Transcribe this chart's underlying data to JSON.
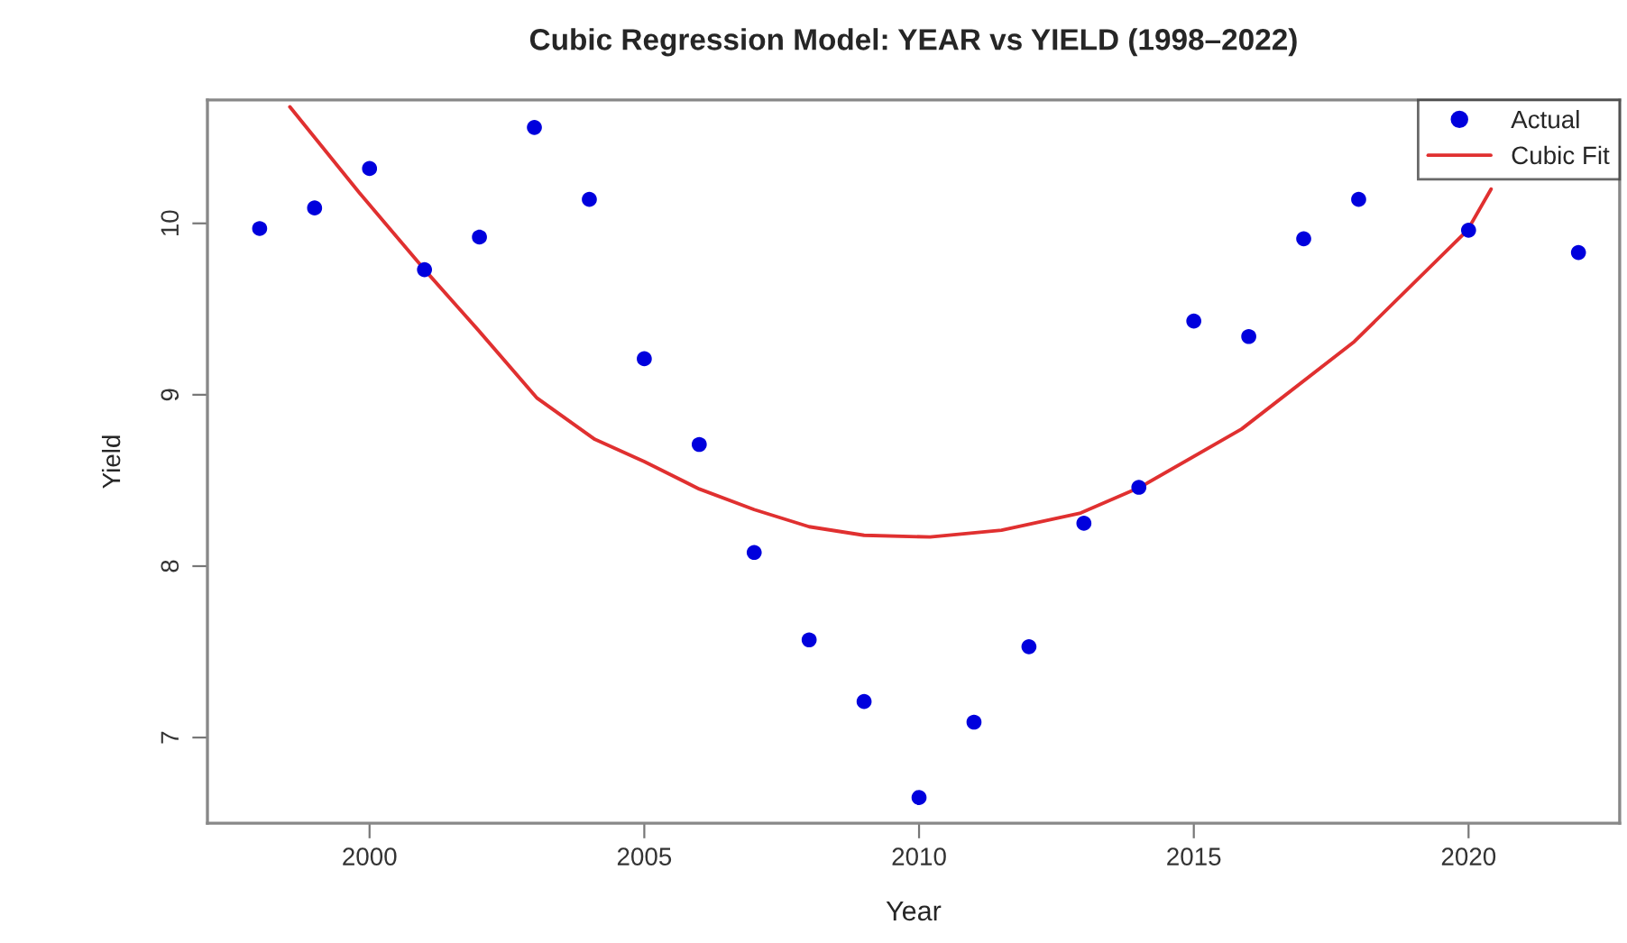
{
  "chart_data": {
    "type": "scatter",
    "title": "Cubic Regression Model: YEAR vs YIELD (1998–2022)",
    "xlabel": "Year",
    "ylabel": "Yield",
    "xlim": [
      1997.05,
      2022.75
    ],
    "ylim": [
      6.5,
      10.72
    ],
    "xticks": [
      2000,
      2005,
      2010,
      2015,
      2020
    ],
    "yticks": [
      7,
      8,
      9,
      10
    ],
    "grid": false,
    "legend": "top right",
    "marker": "circle",
    "series": [
      {
        "name": "Actual",
        "color": "#0000dd",
        "x": [
          1998,
          1999,
          2000,
          2001,
          2002,
          2003,
          2004,
          2005,
          2006,
          2007,
          2008,
          2009,
          2010,
          2011,
          2012,
          2013,
          2014,
          2015,
          2016,
          2017,
          2018,
          2019,
          2020,
          2021,
          2022
        ],
        "values": [
          9.97,
          10.09,
          10.32,
          9.73,
          9.92,
          10.56,
          10.14,
          9.21,
          8.71,
          8.08,
          7.57,
          7.21,
          6.65,
          7.09,
          7.53,
          8.25,
          8.46,
          9.43,
          9.34,
          9.91,
          10.14,
          null,
          9.96,
          null,
          9.83
        ]
      },
      {
        "name": "Cubic Fit",
        "type": "line",
        "color": "#e03030",
        "line_style": "solid",
        "marker": "none",
        "x": [
          1998.55,
          1999.81,
          2001.0,
          2001.97,
          2003.05,
          2004.1,
          2005.0,
          2006.0,
          2007.0,
          2008.0,
          2009.0,
          2010.2,
          2011.5,
          2012.94,
          2014.02,
          2015.87,
          2017.92,
          2019.98,
          2020.41
        ],
        "values": [
          10.68,
          10.18,
          9.73,
          9.38,
          8.98,
          8.74,
          8.61,
          8.45,
          8.33,
          8.23,
          8.18,
          8.17,
          8.21,
          8.31,
          8.46,
          8.8,
          9.31,
          9.96,
          10.2
        ]
      }
    ]
  }
}
